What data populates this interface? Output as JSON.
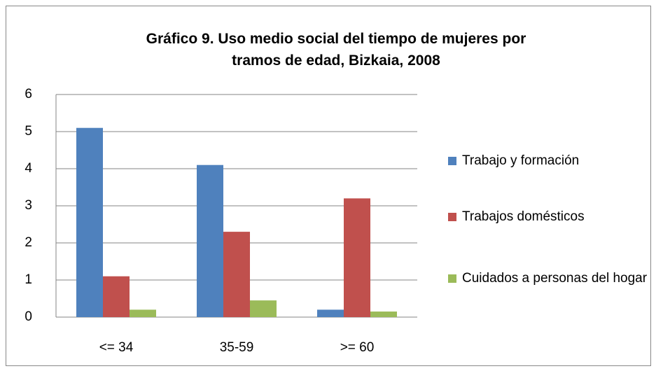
{
  "chart_data": {
    "type": "bar",
    "title": "Gráfico 9. Uso medio social del tiempo de mujeres por tramos de edad, Bizkaia, 2008",
    "categories": [
      "<= 34",
      "35-59",
      ">= 60"
    ],
    "series": [
      {
        "name": "Trabajo y formación",
        "color": "#4f81bd",
        "values": [
          5.1,
          4.1,
          0.2
        ]
      },
      {
        "name": "Trabajos domésticos",
        "color": "#c0504d",
        "values": [
          1.1,
          2.3,
          3.2
        ]
      },
      {
        "name": "Cuidados a personas del hogar",
        "color": "#9bbb59",
        "values": [
          0.2,
          0.45,
          0.15
        ]
      }
    ],
    "ylim": [
      0,
      6
    ],
    "yticks": [
      0,
      1,
      2,
      3,
      4,
      5,
      6
    ],
    "grid": true,
    "legend": "right"
  }
}
